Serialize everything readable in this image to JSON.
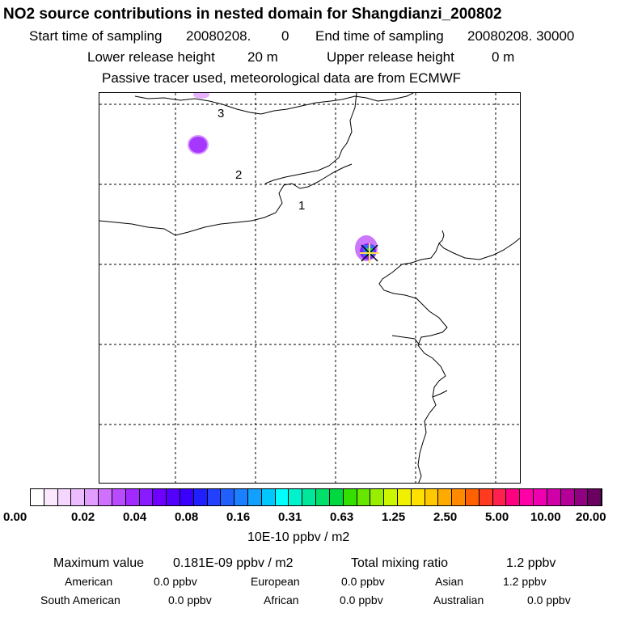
{
  "header": {
    "title": "NO2 source contributions in nested domain for Shangdianzi_200802",
    "start_label": "Start time of sampling",
    "start_value": "20080208.",
    "start_time": "0",
    "end_label": "End time of sampling",
    "end_value": "20080208. 30000",
    "lower_label": "Lower release height",
    "lower_value": "20 m",
    "upper_label": "Upper release height",
    "upper_value": "0 m",
    "note": "Passive tracer used, meteorological data are from ECMWF"
  },
  "map": {
    "region_labels": [
      "1",
      "2",
      "3"
    ],
    "colors": {
      "coastline": "#000000",
      "grid": "#000000",
      "plume_light": "#b94bff",
      "plume_dark": "#8a1aff",
      "station_fill": "#3b66ff",
      "station_center": "#2ec27e",
      "station_marker": "#ffe14d"
    }
  },
  "colorbar": {
    "tick_labels": [
      "0.00",
      "0.02",
      "0.04",
      "0.08",
      "0.16",
      "0.31",
      "0.63",
      "1.25",
      "2.50",
      "5.00",
      "10.00",
      "20.00"
    ],
    "unit": "10E-10 ppbv / m2",
    "colors": [
      "#ffffff",
      "#fbe8ff",
      "#f4d6ff",
      "#ecbcff",
      "#e19dff",
      "#cf70ff",
      "#b94bff",
      "#a22aff",
      "#8a1aff",
      "#6f00ff",
      "#5500ff",
      "#3a00ff",
      "#2020ff",
      "#2440ff",
      "#2060ff",
      "#1a80ff",
      "#12a0ff",
      "#00c8ff",
      "#00ffff",
      "#00f2cc",
      "#00e69a",
      "#00e06a",
      "#00d840",
      "#33e000",
      "#66e600",
      "#99ee00",
      "#ccf500",
      "#f0f000",
      "#ffe000",
      "#ffc800",
      "#ffaa00",
      "#ff8a00",
      "#ff6000",
      "#ff3a20",
      "#ff2050",
      "#ff0080",
      "#ff00a8",
      "#ee00b0",
      "#d000a8",
      "#b40098",
      "#900080",
      "#6a0060"
    ]
  },
  "summary": {
    "max_label": "Maximum value",
    "max_value": "0.181E-09 ppbv / m2",
    "total_label": "Total mixing ratio",
    "total_value": "1.2 ppbv",
    "regions": [
      {
        "name": "American",
        "value": "0.0 ppbv"
      },
      {
        "name": "European",
        "value": "0.0 ppbv"
      },
      {
        "name": "Asian",
        "value": "1.2 ppbv"
      },
      {
        "name": "South American",
        "value": "0.0 ppbv"
      },
      {
        "name": "African",
        "value": "0.0 ppbv"
      },
      {
        "name": "Australian",
        "value": "0.0 ppbv"
      }
    ]
  }
}
